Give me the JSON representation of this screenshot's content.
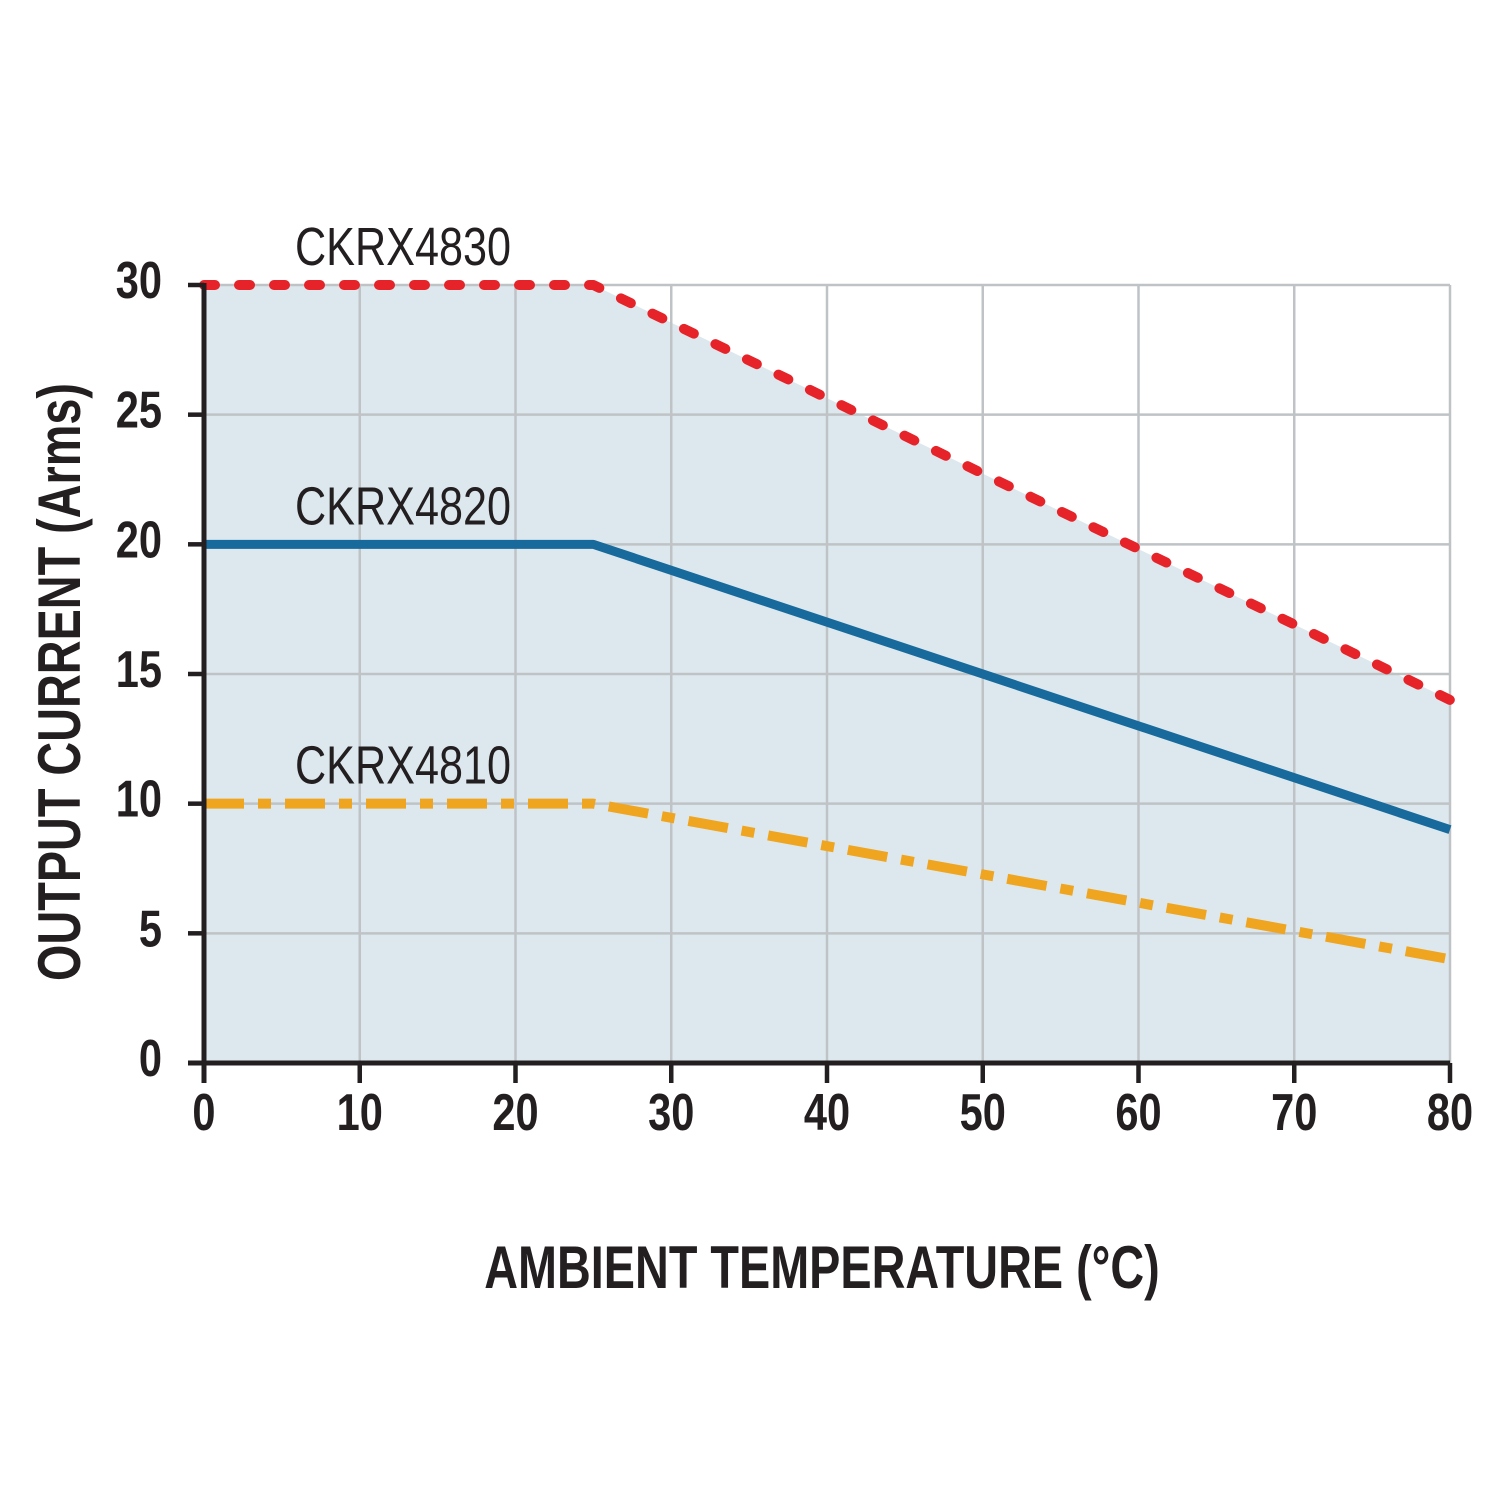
{
  "page": {
    "background": "#ffffff"
  },
  "chart_data": {
    "type": "line",
    "title": "",
    "xlabel": "AMBIENT TEMPERATURE (°C)",
    "ylabel": "OUTPUT CURRENT (Arms)",
    "xlim": [
      0,
      80
    ],
    "ylim": [
      0,
      30
    ],
    "x_ticks": [
      0,
      10,
      20,
      30,
      40,
      50,
      60,
      70,
      80
    ],
    "y_ticks": [
      0,
      5,
      10,
      15,
      20,
      25,
      30
    ],
    "grid": true,
    "legend_position": "inline-labels-above-lines",
    "colors": {
      "grid": "#bfc3c6",
      "axis": "#231f20",
      "fill": "#dde8ee",
      "text": "#231f20"
    },
    "fill_under_series": "CKRX4830",
    "series": [
      {
        "name": "CKRX4830",
        "color": "#e52329",
        "line_style": "dotted",
        "points": [
          [
            0,
            30
          ],
          [
            25,
            30
          ],
          [
            80,
            14
          ]
        ]
      },
      {
        "name": "CKRX4820",
        "color": "#176a9b",
        "line_style": "solid",
        "points": [
          [
            0,
            20
          ],
          [
            25,
            20
          ],
          [
            80,
            9
          ]
        ]
      },
      {
        "name": "CKRX4810",
        "color": "#efa51f",
        "line_style": "dashdot",
        "points": [
          [
            0,
            10
          ],
          [
            25,
            10
          ],
          [
            80,
            4
          ]
        ]
      }
    ]
  }
}
